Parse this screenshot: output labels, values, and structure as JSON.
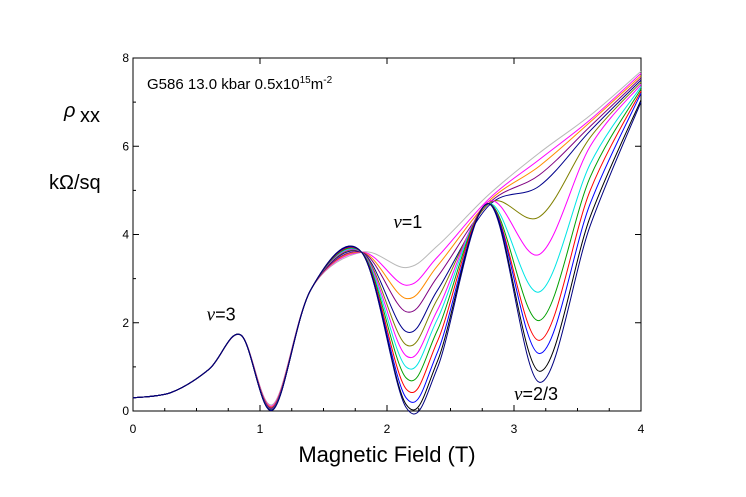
{
  "chart_data": {
    "type": "line",
    "title": "G586  13.0 kbar 0.5x10",
    "title_exponent": "15",
    "title_unit": "m",
    "title_unit_exponent": "-2",
    "ylabel_symbol": "ρ",
    "ylabel_subscript": "xx",
    "ylabel_unit": "kΩ/sq",
    "xlabel": "Magnetic Field  (T)",
    "xlim": [
      0,
      4
    ],
    "ylim": [
      0,
      8
    ],
    "xticks": [
      0,
      1,
      2,
      3,
      4
    ],
    "yticks": [
      0,
      2,
      4,
      6,
      8
    ],
    "grid": false,
    "annotations": [
      {
        "symbol": "ν",
        "text": "=1",
        "x": 2.05,
        "y": 4.15
      },
      {
        "symbol": "ν",
        "text": "=3",
        "x": 0.58,
        "y": 2.05
      },
      {
        "symbol": "ν",
        "text": "=2/3",
        "x": 3.0,
        "y": 0.25
      }
    ],
    "series": [
      {
        "color": "#b8b8b8",
        "values": [
          [
            0,
            0.3
          ],
          [
            0.3,
            0.42
          ],
          [
            0.6,
            0.95
          ],
          [
            0.85,
            1.72
          ],
          [
            1.1,
            0.15
          ],
          [
            1.4,
            2.75
          ],
          [
            1.8,
            3.6
          ],
          [
            2.15,
            3.25
          ],
          [
            2.4,
            3.75
          ],
          [
            2.8,
            4.9
          ],
          [
            3.2,
            5.85
          ],
          [
            3.6,
            6.7
          ],
          [
            4,
            7.7
          ]
        ]
      },
      {
        "color": "#ff00ff",
        "values": [
          [
            0,
            0.3
          ],
          [
            0.3,
            0.42
          ],
          [
            0.6,
            0.95
          ],
          [
            0.85,
            1.72
          ],
          [
            1.1,
            0.12
          ],
          [
            1.4,
            2.75
          ],
          [
            1.8,
            3.6
          ],
          [
            2.15,
            2.85
          ],
          [
            2.4,
            3.5
          ],
          [
            2.8,
            4.8
          ],
          [
            3.2,
            5.7
          ],
          [
            3.6,
            6.6
          ],
          [
            4,
            7.65
          ]
        ]
      },
      {
        "color": "#ff8c00",
        "values": [
          [
            0,
            0.3
          ],
          [
            0.3,
            0.42
          ],
          [
            0.6,
            0.95
          ],
          [
            0.85,
            1.72
          ],
          [
            1.1,
            0.1
          ],
          [
            1.4,
            2.75
          ],
          [
            1.8,
            3.6
          ],
          [
            2.15,
            2.55
          ],
          [
            2.4,
            3.3
          ],
          [
            2.8,
            4.75
          ],
          [
            3.2,
            5.55
          ],
          [
            3.6,
            6.55
          ],
          [
            4,
            7.6
          ]
        ]
      },
      {
        "color": "#800080",
        "values": [
          [
            0,
            0.3
          ],
          [
            0.3,
            0.42
          ],
          [
            0.6,
            0.95
          ],
          [
            0.85,
            1.72
          ],
          [
            1.1,
            0.08
          ],
          [
            1.4,
            2.75
          ],
          [
            1.8,
            3.6
          ],
          [
            2.15,
            2.25
          ],
          [
            2.4,
            3.05
          ],
          [
            2.8,
            4.7
          ],
          [
            3.2,
            5.35
          ],
          [
            3.6,
            6.45
          ],
          [
            4,
            7.55
          ]
        ]
      },
      {
        "color": "#00008b",
        "values": [
          [
            0,
            0.3
          ],
          [
            0.3,
            0.42
          ],
          [
            0.6,
            0.95
          ],
          [
            0.85,
            1.72
          ],
          [
            1.1,
            0.06
          ],
          [
            1.4,
            2.75
          ],
          [
            1.8,
            3.6
          ],
          [
            2.15,
            1.8
          ],
          [
            2.4,
            2.75
          ],
          [
            2.8,
            4.65
          ],
          [
            3.2,
            5.1
          ],
          [
            3.6,
            6.35
          ],
          [
            4,
            7.5
          ]
        ]
      },
      {
        "color": "#808000",
        "values": [
          [
            0,
            0.3
          ],
          [
            0.3,
            0.42
          ],
          [
            0.6,
            0.95
          ],
          [
            0.85,
            1.72
          ],
          [
            1.1,
            0.05
          ],
          [
            1.4,
            2.75
          ],
          [
            1.8,
            3.6
          ],
          [
            2.15,
            1.5
          ],
          [
            2.4,
            2.55
          ],
          [
            2.8,
            4.7
          ],
          [
            3.2,
            4.4
          ],
          [
            3.6,
            6.2
          ],
          [
            4,
            7.45
          ]
        ]
      },
      {
        "color": "#ff00ff",
        "values": [
          [
            0,
            0.3
          ],
          [
            0.3,
            0.42
          ],
          [
            0.6,
            0.95
          ],
          [
            0.85,
            1.72
          ],
          [
            1.1,
            0.05
          ],
          [
            1.4,
            2.75
          ],
          [
            1.8,
            3.6
          ],
          [
            2.15,
            1.25
          ],
          [
            2.4,
            2.3
          ],
          [
            2.8,
            4.75
          ],
          [
            3.2,
            3.55
          ],
          [
            3.6,
            6.0
          ],
          [
            4,
            7.4
          ]
        ]
      },
      {
        "color": "#00e5e5",
        "values": [
          [
            0,
            0.3
          ],
          [
            0.3,
            0.42
          ],
          [
            0.6,
            0.95
          ],
          [
            0.85,
            1.72
          ],
          [
            1.1,
            0.04
          ],
          [
            1.4,
            2.75
          ],
          [
            1.8,
            3.6
          ],
          [
            2.15,
            1.0
          ],
          [
            2.4,
            2.1
          ],
          [
            2.8,
            4.7
          ],
          [
            3.2,
            2.7
          ],
          [
            3.6,
            5.6
          ],
          [
            4,
            7.35
          ]
        ]
      },
      {
        "color": "#00a000",
        "values": [
          [
            0,
            0.3
          ],
          [
            0.3,
            0.42
          ],
          [
            0.6,
            0.95
          ],
          [
            0.85,
            1.72
          ],
          [
            1.1,
            0.04
          ],
          [
            1.4,
            2.75
          ],
          [
            1.8,
            3.6
          ],
          [
            2.15,
            0.75
          ],
          [
            2.4,
            1.85
          ],
          [
            2.8,
            4.7
          ],
          [
            3.2,
            2.05
          ],
          [
            3.6,
            5.3
          ],
          [
            4,
            7.3
          ]
        ]
      },
      {
        "color": "#ff0000",
        "values": [
          [
            0,
            0.3
          ],
          [
            0.3,
            0.42
          ],
          [
            0.6,
            0.95
          ],
          [
            0.85,
            1.72
          ],
          [
            1.1,
            0.03
          ],
          [
            1.4,
            2.75
          ],
          [
            1.8,
            3.6
          ],
          [
            2.15,
            0.5
          ],
          [
            2.4,
            1.6
          ],
          [
            2.8,
            4.7
          ],
          [
            3.2,
            1.6
          ],
          [
            3.6,
            5.0
          ],
          [
            4,
            7.25
          ]
        ]
      },
      {
        "color": "#0000ff",
        "values": [
          [
            0,
            0.3
          ],
          [
            0.3,
            0.42
          ],
          [
            0.6,
            0.95
          ],
          [
            0.85,
            1.72
          ],
          [
            1.1,
            0.03
          ],
          [
            1.4,
            2.75
          ],
          [
            1.8,
            3.6
          ],
          [
            2.15,
            0.3
          ],
          [
            2.4,
            1.35
          ],
          [
            2.8,
            4.7
          ],
          [
            3.2,
            1.3
          ],
          [
            3.6,
            4.7
          ],
          [
            4,
            7.2
          ]
        ]
      },
      {
        "color": "#000000",
        "values": [
          [
            0,
            0.3
          ],
          [
            0.3,
            0.42
          ],
          [
            0.6,
            0.95
          ],
          [
            0.85,
            1.72
          ],
          [
            1.1,
            0.02
          ],
          [
            1.4,
            2.75
          ],
          [
            1.8,
            3.6
          ],
          [
            2.15,
            0.15
          ],
          [
            2.4,
            1.15
          ],
          [
            2.8,
            4.7
          ],
          [
            3.2,
            0.9
          ],
          [
            3.6,
            4.4
          ],
          [
            4,
            7.05
          ]
        ]
      },
      {
        "color": "#000080",
        "values": [
          [
            0,
            0.3
          ],
          [
            0.3,
            0.42
          ],
          [
            0.6,
            0.95
          ],
          [
            0.85,
            1.72
          ],
          [
            1.1,
            0.02
          ],
          [
            1.4,
            2.75
          ],
          [
            1.8,
            3.6
          ],
          [
            2.15,
            0.08
          ],
          [
            2.4,
            1.0
          ],
          [
            2.8,
            4.7
          ],
          [
            3.2,
            0.65
          ],
          [
            3.6,
            4.2
          ],
          [
            4,
            7.0
          ]
        ]
      }
    ]
  }
}
